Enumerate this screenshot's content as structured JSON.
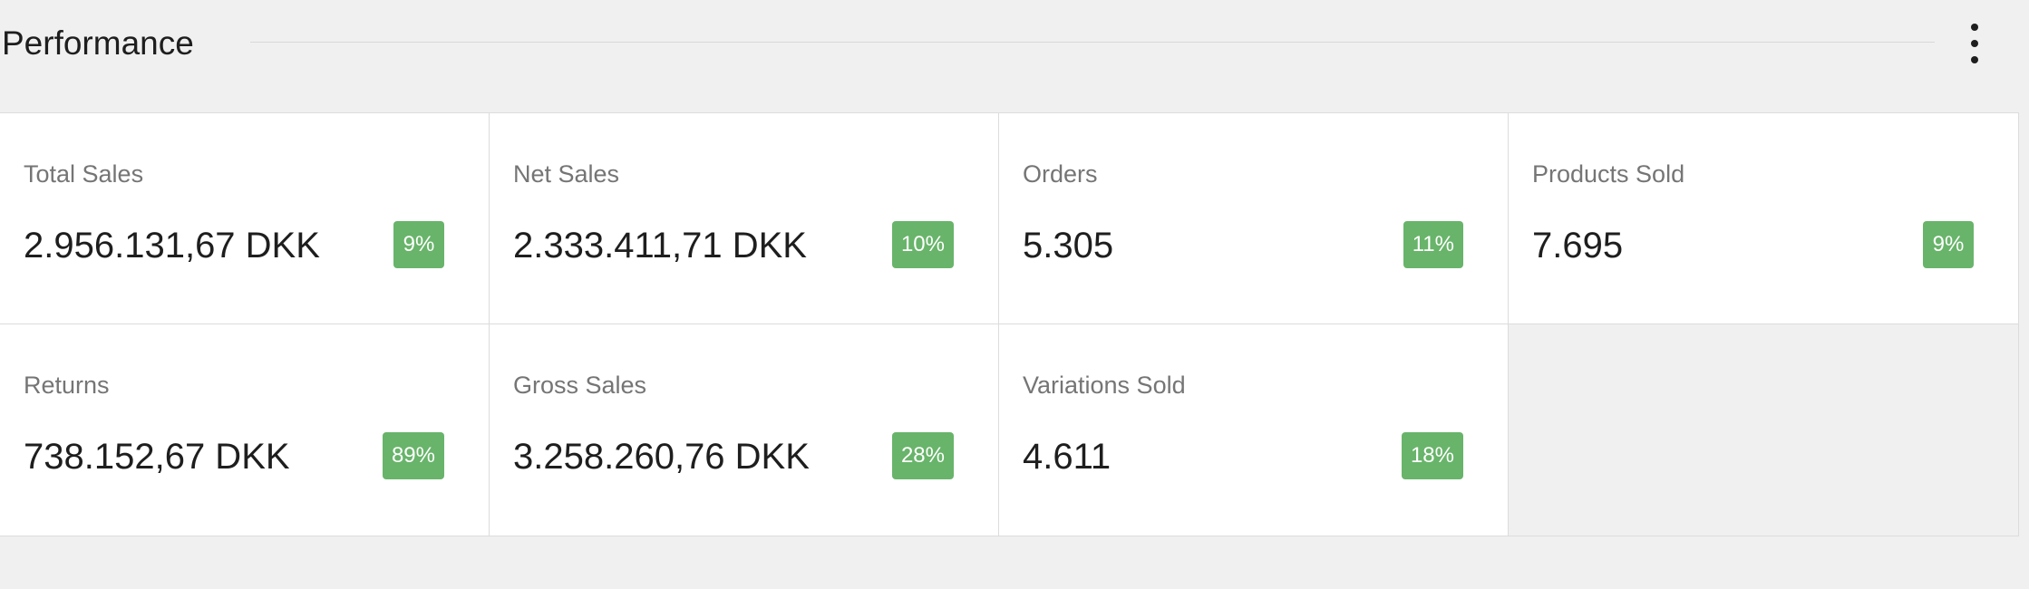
{
  "header": {
    "title": "Performance"
  },
  "cards": [
    {
      "label": "Total Sales",
      "value": "2.956.131,67 DKK",
      "delta": "9%"
    },
    {
      "label": "Net Sales",
      "value": "2.333.411,71 DKK",
      "delta": "10%"
    },
    {
      "label": "Orders",
      "value": "5.305",
      "delta": "11%"
    },
    {
      "label": "Products Sold",
      "value": "7.695",
      "delta": "9%"
    },
    {
      "label": "Returns",
      "value": "738.152,67 DKK",
      "delta": "89%"
    },
    {
      "label": "Gross Sales",
      "value": "3.258.260,76 DKK",
      "delta": "28%"
    },
    {
      "label": "Variations Sold",
      "value": "4.611",
      "delta": "18%"
    }
  ]
}
